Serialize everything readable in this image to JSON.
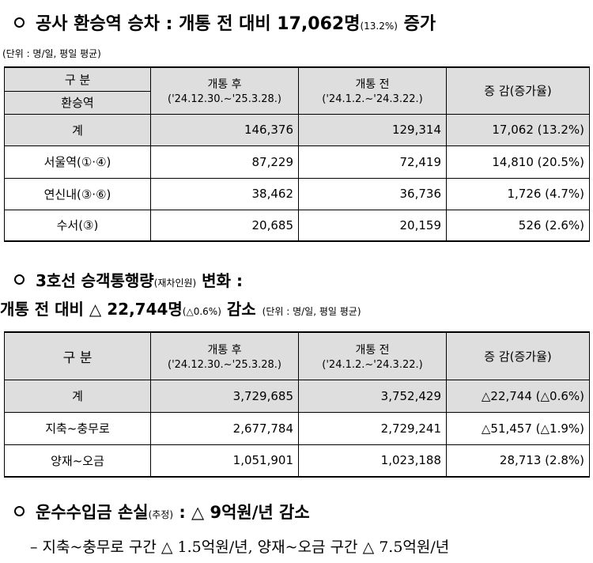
{
  "heading1": {
    "main": "공사  환승역 승차 : 개통 전 대비 17,062명",
    "pct": "(13.2%)",
    "suffix": " 증가"
  },
  "unit1": "(단위 : 명/일, 평일 평균)",
  "table1": {
    "header": {
      "col1_top": "구   분",
      "col1_bottom": "환승역",
      "col2_main": "개통 후",
      "col2_sub": "('24.12.30.~'25.3.28.)",
      "col3_main": "개통 전",
      "col3_sub": "('24.1.2.~'24.3.22.)",
      "col4": "증 감(증가율)"
    },
    "rows": [
      {
        "name": "계",
        "after": "146,376",
        "before": "129,314",
        "change": "17,062 (13.2%)"
      },
      {
        "name": "서울역(①·④)",
        "after": "87,229",
        "before": "72,419",
        "change": "14,810 (20.5%)"
      },
      {
        "name": "연신내(③·⑥)",
        "after": "38,462",
        "before": "36,736",
        "change": "1,726 (4.7%)"
      },
      {
        "name": "수서(③)",
        "after": "20,685",
        "before": "20,159",
        "change": "526 (2.6%)"
      }
    ]
  },
  "heading2": {
    "main": "3호선 승객통행량",
    "small": "(재차인원)",
    "suffix": " 변화 :"
  },
  "heading3": {
    "main": "개통 전 대비 △ 22,744명",
    "small": "(△0.6%)",
    "suffix": " 감소",
    "unit": "(단위 : 명/일, 평일 평균)"
  },
  "table2": {
    "header": {
      "col1": "구 분",
      "col2_main": "개통 후",
      "col2_sub": "('24.12.30.~'25.3.28.)",
      "col3_main": "개통 전",
      "col3_sub": "('24.1.2.~'24.3.22.)",
      "col4": "증 감(증가율)"
    },
    "rows": [
      {
        "name": "계",
        "after": "3,729,685",
        "before": "3,752,429",
        "change": "△22,744 (△0.6%)"
      },
      {
        "name": "지축~충무로",
        "after": "2,677,784",
        "before": "2,729,241",
        "change": "△51,457 (△1.9%)"
      },
      {
        "name": "양재~오금",
        "after": "1,051,901",
        "before": "1,023,188",
        "change": "28,713 (2.8%)"
      }
    ]
  },
  "heading4": {
    "main": "운수수입금 손실",
    "small": "(추정)",
    "suffix": " : △ 9억원/년 감소"
  },
  "subline": "– 지축~충무로 구간 △ 1.5억원/년, 양재~오금 구간 △ 7.5억원/년"
}
